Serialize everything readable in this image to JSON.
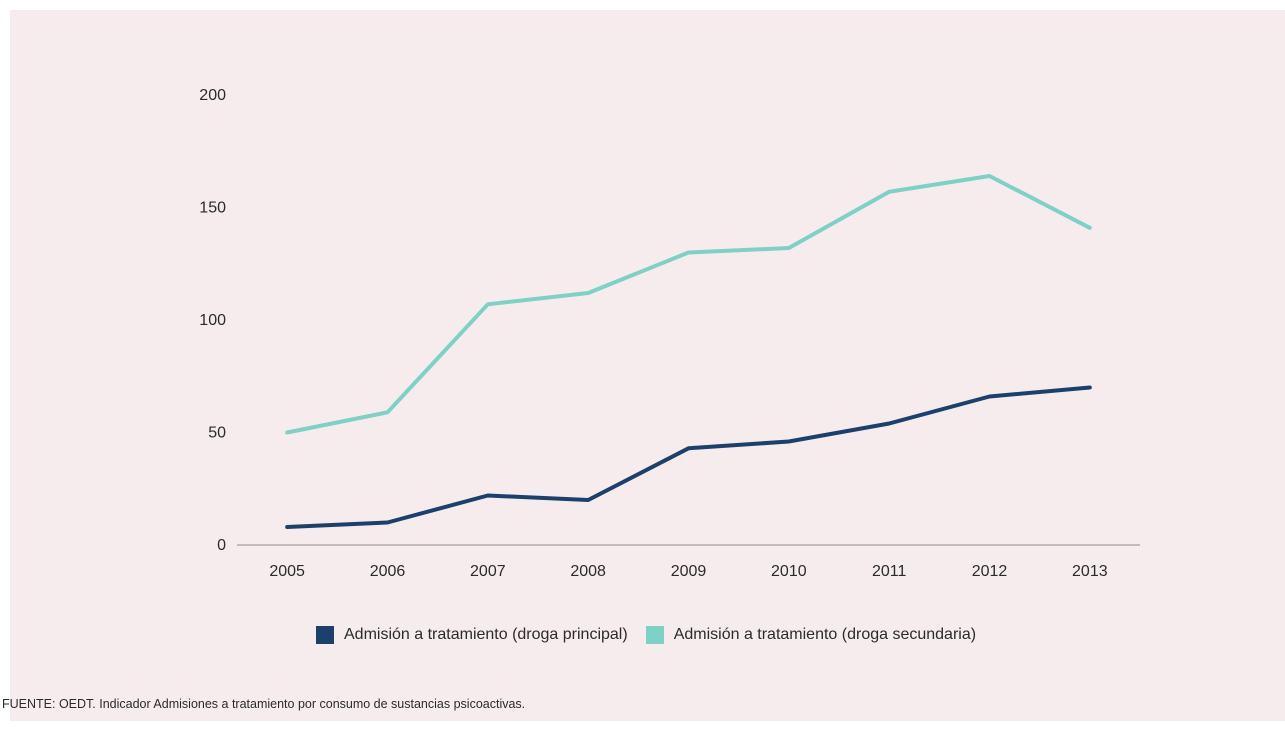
{
  "chart_data": {
    "type": "line",
    "categories": [
      "2005",
      "2006",
      "2007",
      "2008",
      "2009",
      "2010",
      "2011",
      "2012",
      "2013"
    ],
    "series": [
      {
        "name": "Admisión a tratamiento (droga principal)",
        "color": "#1d3f6b",
        "values": [
          8,
          10,
          22,
          20,
          43,
          46,
          54,
          66,
          70
        ]
      },
      {
        "name": "Admisión a tratamiento (droga secundaria)",
        "color": "#7fd1c6",
        "values": [
          50,
          59,
          107,
          112,
          130,
          132,
          157,
          164,
          141
        ]
      }
    ],
    "yticks": [
      "0",
      "50",
      "100",
      "150",
      "200"
    ],
    "ylim": [
      0,
      200
    ],
    "grid": false,
    "legend_position": "bottom",
    "background_color": "#f6ecee"
  },
  "source": "FUENTE: OEDT. Indicador Admisiones a tratamiento por consumo de sustancias psicoactivas."
}
